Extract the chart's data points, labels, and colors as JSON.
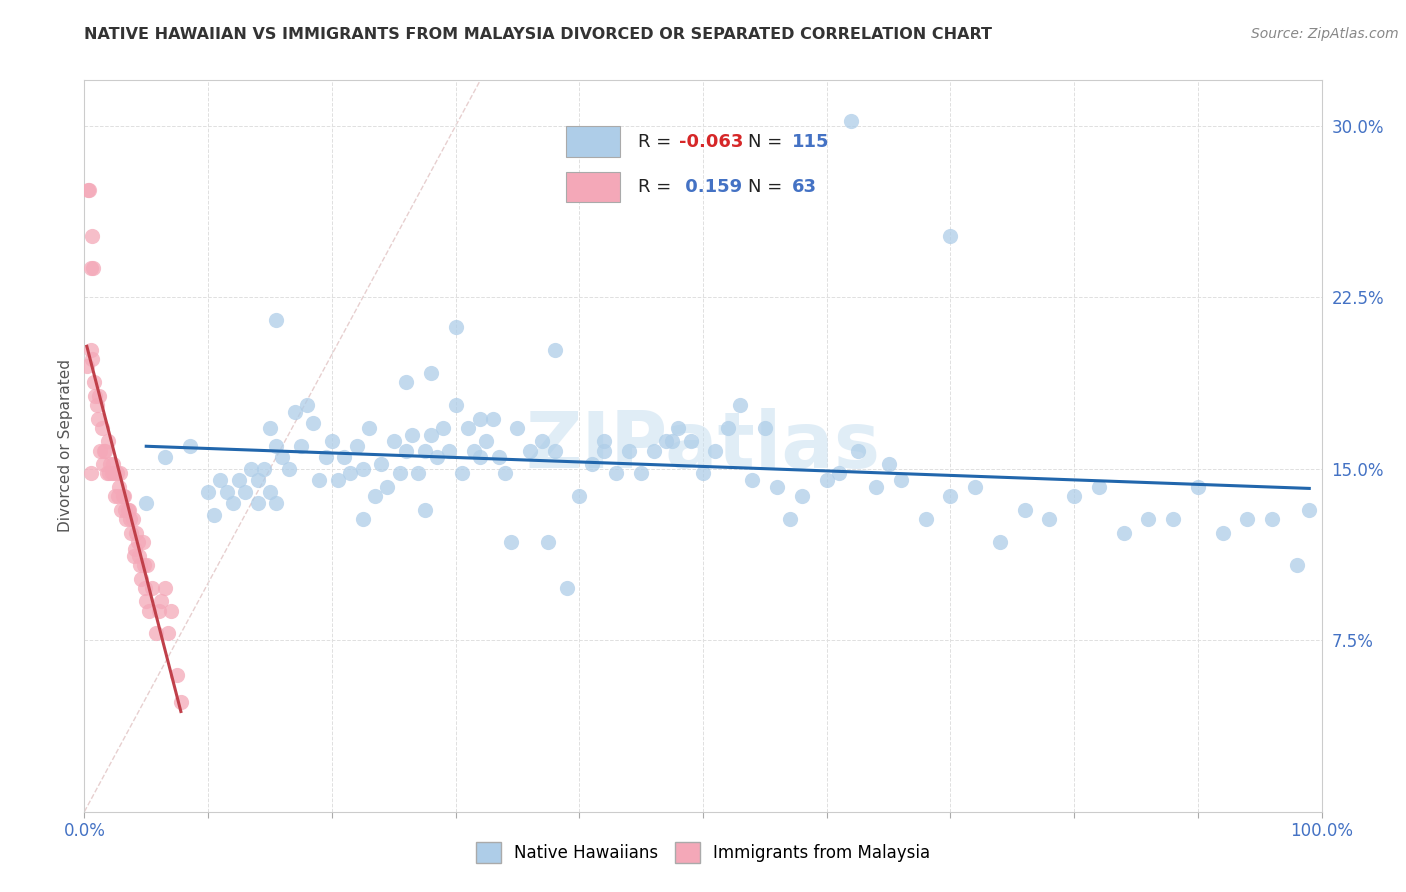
{
  "title": "NATIVE HAWAIIAN VS IMMIGRANTS FROM MALAYSIA DIVORCED OR SEPARATED CORRELATION CHART",
  "source": "Source: ZipAtlas.com",
  "ylabel": "Divorced or Separated",
  "xlim": [
    0.0,
    1.0
  ],
  "ylim": [
    0.0,
    0.32
  ],
  "x_ticks": [
    0.0,
    0.1,
    0.2,
    0.3,
    0.4,
    0.5,
    0.6,
    0.7,
    0.8,
    0.9,
    1.0
  ],
  "x_tick_labels": [
    "0.0%",
    "",
    "",
    "",
    "",
    "",
    "",
    "",
    "",
    "",
    "100.0%"
  ],
  "y_ticks": [
    0.0,
    0.075,
    0.15,
    0.225,
    0.3
  ],
  "y_tick_labels": [
    "",
    "7.5%",
    "15.0%",
    "22.5%",
    "30.0%"
  ],
  "legend_blue_label": "Native Hawaiians",
  "legend_pink_label": "Immigrants from Malaysia",
  "legend_r_blue": "-0.063",
  "legend_n_blue": "115",
  "legend_r_pink": " 0.159",
  "legend_n_pink": "63",
  "blue_color": "#aecde8",
  "pink_color": "#f4a8b8",
  "blue_line_color": "#2166ac",
  "pink_line_color": "#c0404a",
  "diagonal_color": "#cccccc",
  "watermark": "ZIPatlas",
  "background_color": "#ffffff",
  "plot_bg_color": "#ffffff",
  "grid_color": "#e0e0e0",
  "blue_scatter_x": [
    0.05,
    0.065,
    0.085,
    0.1,
    0.105,
    0.11,
    0.115,
    0.12,
    0.125,
    0.13,
    0.135,
    0.14,
    0.14,
    0.145,
    0.15,
    0.15,
    0.155,
    0.155,
    0.16,
    0.165,
    0.17,
    0.175,
    0.18,
    0.185,
    0.19,
    0.195,
    0.2,
    0.205,
    0.21,
    0.215,
    0.22,
    0.225,
    0.23,
    0.235,
    0.24,
    0.245,
    0.25,
    0.255,
    0.26,
    0.265,
    0.27,
    0.275,
    0.28,
    0.285,
    0.29,
    0.295,
    0.3,
    0.305,
    0.31,
    0.315,
    0.32,
    0.325,
    0.33,
    0.335,
    0.34,
    0.35,
    0.36,
    0.37,
    0.38,
    0.39,
    0.4,
    0.41,
    0.42,
    0.43,
    0.44,
    0.45,
    0.46,
    0.47,
    0.48,
    0.49,
    0.5,
    0.51,
    0.52,
    0.53,
    0.54,
    0.56,
    0.57,
    0.58,
    0.6,
    0.61,
    0.625,
    0.64,
    0.65,
    0.66,
    0.68,
    0.7,
    0.72,
    0.74,
    0.76,
    0.78,
    0.8,
    0.82,
    0.84,
    0.86,
    0.88,
    0.9,
    0.92,
    0.94,
    0.96,
    0.98,
    0.99,
    0.62,
    0.7,
    0.3,
    0.32,
    0.38,
    0.26,
    0.28,
    0.225,
    0.55,
    0.475,
    0.42,
    0.375,
    0.345,
    0.275,
    0.155
  ],
  "blue_scatter_y": [
    0.135,
    0.155,
    0.16,
    0.14,
    0.13,
    0.145,
    0.14,
    0.135,
    0.145,
    0.14,
    0.15,
    0.145,
    0.135,
    0.15,
    0.168,
    0.14,
    0.16,
    0.135,
    0.155,
    0.15,
    0.175,
    0.16,
    0.178,
    0.17,
    0.145,
    0.155,
    0.162,
    0.145,
    0.155,
    0.148,
    0.16,
    0.15,
    0.168,
    0.138,
    0.152,
    0.142,
    0.162,
    0.148,
    0.158,
    0.165,
    0.148,
    0.158,
    0.165,
    0.155,
    0.168,
    0.158,
    0.178,
    0.148,
    0.168,
    0.158,
    0.155,
    0.162,
    0.172,
    0.155,
    0.148,
    0.168,
    0.158,
    0.162,
    0.158,
    0.098,
    0.138,
    0.152,
    0.162,
    0.148,
    0.158,
    0.148,
    0.158,
    0.162,
    0.168,
    0.162,
    0.148,
    0.158,
    0.168,
    0.178,
    0.145,
    0.142,
    0.128,
    0.138,
    0.145,
    0.148,
    0.158,
    0.142,
    0.152,
    0.145,
    0.128,
    0.138,
    0.142,
    0.118,
    0.132,
    0.128,
    0.138,
    0.142,
    0.122,
    0.128,
    0.128,
    0.142,
    0.122,
    0.128,
    0.128,
    0.108,
    0.132,
    0.302,
    0.252,
    0.212,
    0.172,
    0.202,
    0.188,
    0.192,
    0.128,
    0.168,
    0.162,
    0.158,
    0.118,
    0.118,
    0.132,
    0.215
  ],
  "pink_scatter_x": [
    0.002,
    0.003,
    0.004,
    0.005,
    0.006,
    0.007,
    0.008,
    0.009,
    0.01,
    0.011,
    0.012,
    0.013,
    0.014,
    0.015,
    0.016,
    0.017,
    0.018,
    0.019,
    0.02,
    0.021,
    0.022,
    0.023,
    0.024,
    0.025,
    0.026,
    0.027,
    0.028,
    0.029,
    0.03,
    0.031,
    0.032,
    0.033,
    0.034,
    0.035,
    0.036,
    0.037,
    0.038,
    0.039,
    0.04,
    0.041,
    0.042,
    0.043,
    0.044,
    0.045,
    0.046,
    0.047,
    0.048,
    0.049,
    0.05,
    0.051,
    0.052,
    0.055,
    0.058,
    0.06,
    0.062,
    0.065,
    0.068,
    0.07,
    0.075,
    0.078,
    0.005,
    0.005,
    0.006
  ],
  "pink_scatter_y": [
    0.195,
    0.272,
    0.272,
    0.148,
    0.252,
    0.238,
    0.188,
    0.182,
    0.178,
    0.172,
    0.182,
    0.158,
    0.168,
    0.152,
    0.158,
    0.158,
    0.148,
    0.162,
    0.148,
    0.152,
    0.148,
    0.152,
    0.148,
    0.138,
    0.148,
    0.138,
    0.142,
    0.148,
    0.132,
    0.138,
    0.138,
    0.132,
    0.128,
    0.132,
    0.132,
    0.128,
    0.122,
    0.128,
    0.112,
    0.115,
    0.122,
    0.118,
    0.112,
    0.108,
    0.102,
    0.118,
    0.108,
    0.098,
    0.092,
    0.108,
    0.088,
    0.098,
    0.078,
    0.088,
    0.092,
    0.098,
    0.078,
    0.088,
    0.06,
    0.048,
    0.202,
    0.238,
    0.198
  ]
}
